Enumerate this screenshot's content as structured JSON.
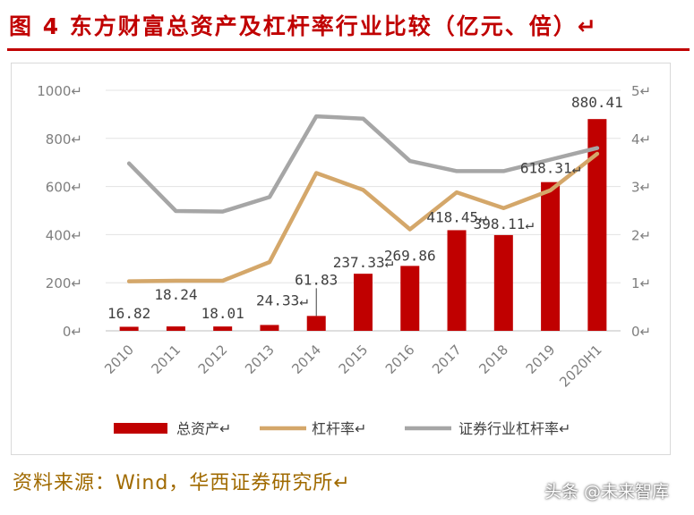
{
  "title": "图 4  东方财富总资产及杠杆率行业比较（亿元、倍）↵",
  "source": "资料来源：Wind，华西证券研究所↵",
  "watermark": "头条 @未来智库",
  "colors": {
    "bar": "#c00000",
    "lev": "#d4a76a",
    "ind": "#a6a6a6",
    "title": "#c00000",
    "axis_text": "#7f7f7f"
  },
  "chart_data": {
    "type": "bar+line",
    "categories": [
      "2010",
      "2011",
      "2012",
      "2013",
      "2014",
      "2015",
      "2016",
      "2017",
      "2018",
      "2019",
      "2020H1"
    ],
    "y_left": {
      "ylim": [
        0,
        1000
      ],
      "ticks": [
        0,
        200,
        400,
        600,
        800,
        1000
      ],
      "tick_labels": [
        "0↵",
        "200↵",
        "400↵",
        "600↵",
        "800↵",
        "1000↵"
      ]
    },
    "y_right": {
      "ylim": [
        0,
        5
      ],
      "ticks": [
        0,
        1,
        2,
        3,
        4,
        5
      ],
      "tick_labels": [
        "0↵",
        "1↵",
        "2↵",
        "3↵",
        "4↵",
        "5↵"
      ]
    },
    "series": [
      {
        "name": "总资产↵",
        "kind": "bar",
        "axis": "left",
        "values": [
          16.82,
          18.24,
          18.01,
          24.33,
          61.83,
          237.33,
          269.86,
          418.45,
          398.11,
          618.31,
          880.41
        ],
        "labels": [
          "16.82",
          "18.24",
          "18.01",
          "24.33↵",
          "61.83",
          "237.33↵",
          "269.86",
          "418.45↵",
          "398.11↵",
          "618.31↵",
          "880.41"
        ]
      },
      {
        "name": "杠杆率↵",
        "kind": "line",
        "axis": "right",
        "values": [
          1.03,
          1.04,
          1.04,
          1.43,
          3.28,
          2.93,
          2.11,
          2.88,
          2.55,
          2.92,
          3.68
        ]
      },
      {
        "name": "证券行业杠杆率↵",
        "kind": "line",
        "axis": "right",
        "values": [
          3.48,
          2.49,
          2.48,
          2.78,
          4.46,
          4.41,
          3.53,
          3.32,
          3.32,
          3.56,
          3.8
        ]
      }
    ],
    "grid": true,
    "legend": "bottom"
  }
}
